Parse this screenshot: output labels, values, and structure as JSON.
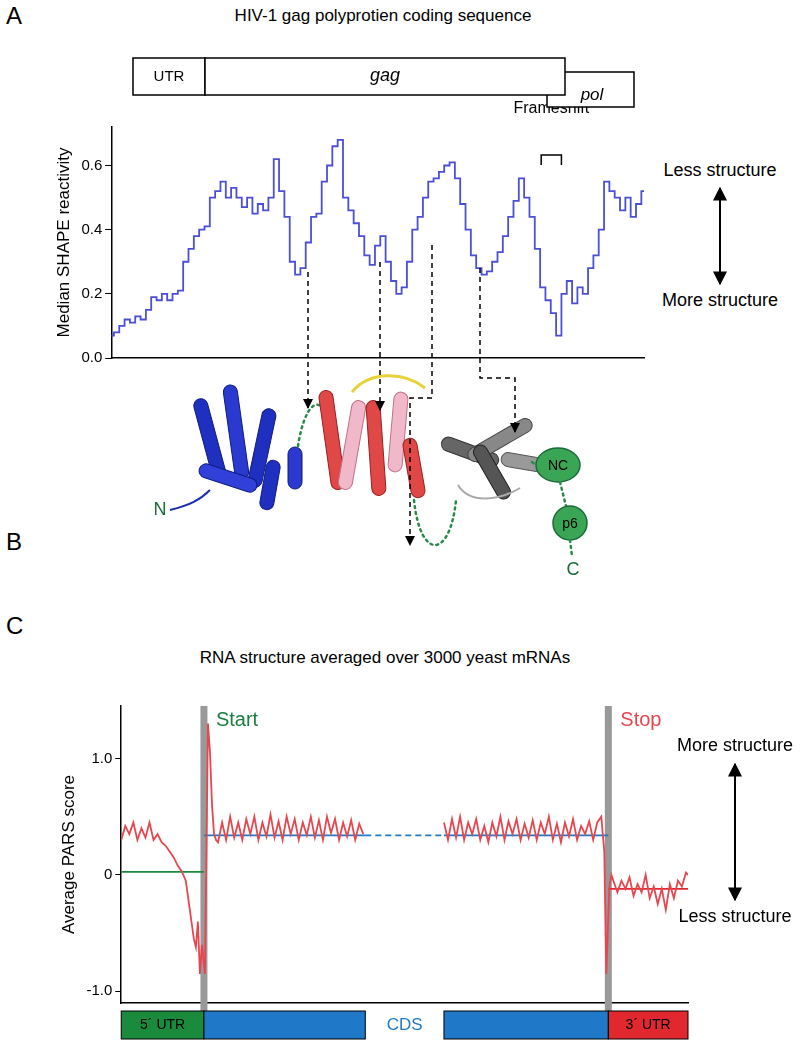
{
  "panel_labels": [
    "A",
    "B",
    "C"
  ],
  "diagram": {
    "termini": [
      "N",
      "C"
    ],
    "domains": [
      "NC",
      "p6"
    ]
  },
  "chart_data": [
    {
      "type": "line",
      "title": "HIV-1 gag polyprotien coding sequence",
      "gene_map": [
        "UTR",
        "gag",
        "pol"
      ],
      "y_label": "Median SHAPE reactivity",
      "scale_labels": {
        "top": "Less structure",
        "bottom": "More structure"
      },
      "x": [
        0,
        1,
        2,
        3,
        4,
        5,
        6,
        7,
        8,
        9,
        10,
        11,
        12,
        13,
        14,
        15,
        16,
        17,
        18,
        19,
        20,
        21,
        22,
        23,
        24,
        25,
        26,
        27,
        28,
        29,
        30,
        31,
        32,
        33,
        34,
        35,
        36,
        37,
        38,
        39,
        40,
        41,
        42,
        43,
        44,
        45,
        46,
        47,
        48,
        49,
        50,
        51,
        52,
        53,
        54,
        55,
        56,
        57,
        58,
        59,
        60,
        61,
        62,
        63,
        64,
        65,
        66,
        67,
        68,
        69,
        70,
        71,
        72,
        73,
        74,
        75,
        76,
        77,
        78,
        79,
        80,
        81,
        82,
        83,
        84,
        85,
        86,
        87,
        88,
        89,
        90,
        91,
        92,
        93,
        94,
        95,
        96,
        97,
        98,
        99,
        100
      ],
      "values": [
        0.07,
        0.08,
        0.1,
        0.12,
        0.11,
        0.13,
        0.12,
        0.15,
        0.19,
        0.18,
        0.2,
        0.18,
        0.2,
        0.21,
        0.3,
        0.34,
        0.38,
        0.4,
        0.41,
        0.5,
        0.52,
        0.55,
        0.5,
        0.53,
        0.5,
        0.47,
        0.5,
        0.45,
        0.48,
        0.46,
        0.5,
        0.62,
        0.52,
        0.44,
        0.3,
        0.26,
        0.28,
        0.36,
        0.44,
        0.45,
        0.55,
        0.6,
        0.66,
        0.68,
        0.5,
        0.46,
        0.42,
        0.38,
        0.32,
        0.29,
        0.35,
        0.38,
        0.3,
        0.24,
        0.2,
        0.22,
        0.3,
        0.4,
        0.44,
        0.5,
        0.55,
        0.56,
        0.58,
        0.6,
        0.61,
        0.56,
        0.48,
        0.4,
        0.32,
        0.28,
        0.26,
        0.27,
        0.3,
        0.33,
        0.38,
        0.44,
        0.49,
        0.56,
        0.5,
        0.44,
        0.34,
        0.22,
        0.18,
        0.14,
        0.07,
        0.2,
        0.24,
        0.17,
        0.22,
        0.2,
        0.28,
        0.32,
        0.4,
        0.55,
        0.52,
        0.5,
        0.46,
        0.5,
        0.44,
        0.48,
        0.52
      ],
      "color": "#4b4fd8",
      "line_style": "stepped",
      "xlim": [
        0,
        100
      ],
      "ylim": [
        0,
        0.72
      ],
      "yticks": [
        {
          "value": 0,
          "label": "0.0"
        },
        0.2,
        0.4,
        0.6
      ],
      "grid": false,
      "tick_labels": "y",
      "annotations": [
        {
          "text": "Frameshift",
          "x": [
            80.7,
            84.5
          ]
        }
      ]
    },
    {
      "type": "line",
      "title": "RNA structure averaged over 3000 yeast mRNAs",
      "y_label": "Average PARS score",
      "scale_labels": {
        "top": "More structure",
        "bottom": "Less structure"
      },
      "series": [
        {
          "color": "#e8464f",
          "line_style": "solid",
          "x": [
            0,
            2,
            4,
            6,
            8,
            10,
            12,
            14,
            16,
            18,
            20,
            22,
            24,
            26,
            28,
            30,
            32,
            34,
            36,
            37,
            38,
            39,
            40,
            41.5,
            43,
            44,
            45,
            46,
            47,
            48,
            50,
            52,
            54,
            56,
            58,
            60,
            62,
            64,
            66,
            68,
            70,
            72,
            74,
            76,
            78,
            80,
            82,
            84,
            86,
            88,
            90,
            92,
            94,
            96,
            98,
            100,
            102,
            104,
            106,
            108,
            110,
            112,
            114,
            116,
            118,
            120
          ],
          "values": [
            0.3,
            0.42,
            0.35,
            0.45,
            0.3,
            0.4,
            0.32,
            0.45,
            0.3,
            0.35,
            0.28,
            0.25,
            0.2,
            0.15,
            0.08,
            0.03,
            -0.05,
            -0.3,
            -0.55,
            -0.62,
            -0.4,
            -0.85,
            -0.6,
            -0.85,
            1.3,
            1.05,
            0.6,
            0.35,
            0.3,
            0.28,
            0.45,
            0.3,
            0.5,
            0.32,
            0.45,
            0.3,
            0.48,
            0.35,
            0.5,
            0.3,
            0.45,
            0.33,
            0.52,
            0.32,
            0.46,
            0.3,
            0.5,
            0.35,
            0.48,
            0.3,
            0.45,
            0.34,
            0.5,
            0.32,
            0.47,
            0.3,
            0.5,
            0.36,
            0.48,
            0.3,
            0.45,
            0.33,
            0.47,
            0.3,
            0.44,
            0.35
          ]
        },
        {
          "color": "#e8464f",
          "line_style": "solid",
          "x": [
            160,
            162,
            164,
            166,
            168,
            170,
            172,
            174,
            176,
            178,
            180,
            182,
            184,
            186,
            188,
            190,
            192,
            194,
            196,
            198,
            200,
            202,
            204,
            206,
            208,
            210,
            212,
            214,
            216,
            218,
            220,
            222,
            224,
            226,
            228,
            230,
            232,
            234,
            236,
            238,
            239.5,
            240.5,
            242,
            243,
            244,
            246,
            248,
            250,
            252,
            254,
            256,
            258,
            260,
            262,
            264,
            266,
            268,
            270,
            272,
            274,
            276,
            278,
            280,
            281
          ],
          "values": [
            0.45,
            0.3,
            0.48,
            0.32,
            0.5,
            0.3,
            0.45,
            0.35,
            0.48,
            0.3,
            0.42,
            0.28,
            0.45,
            0.33,
            0.5,
            0.3,
            0.46,
            0.35,
            0.48,
            0.3,
            0.44,
            0.32,
            0.47,
            0.3,
            0.45,
            0.35,
            0.5,
            0.3,
            0.44,
            0.28,
            0.45,
            0.33,
            0.48,
            0.3,
            0.42,
            0.35,
            0.46,
            0.3,
            0.45,
            0.5,
            0.2,
            -0.85,
            -0.1,
            0.0,
            -0.05,
            -0.15,
            -0.05,
            -0.12,
            -0.02,
            -0.18,
            -0.08,
            -0.15,
            0.0,
            -0.2,
            -0.1,
            -0.25,
            -0.12,
            -0.3,
            -0.08,
            -0.2,
            -0.05,
            -0.1,
            0.02,
            0.0
          ]
        },
        {
          "color": "#1a8a3c",
          "line_style": "solid",
          "x": [
            0,
            41
          ],
          "values": [
            0.025,
            0.025
          ]
        },
        {
          "color": "#1f78c8",
          "line_style": "solid",
          "x": [
            41,
            121
          ],
          "values": [
            0.34,
            0.34
          ]
        },
        {
          "color": "#1f78c8",
          "line_style": "dashed",
          "x": [
            121,
            160
          ],
          "values": [
            0.34,
            0.34
          ]
        },
        {
          "color": "#1f78c8",
          "line_style": "solid",
          "x": [
            160,
            241.5
          ],
          "values": [
            0.34,
            0.34
          ]
        },
        {
          "color": "#e0282e",
          "line_style": "solid",
          "x": [
            241.5,
            281
          ],
          "values": [
            -0.12,
            -0.12
          ]
        }
      ],
      "xlim": [
        0,
        281
      ],
      "ylim": [
        -1.1,
        1.45
      ],
      "yticks": [
        {
          "value": -1,
          "label": "-1.0"
        },
        0,
        {
          "value": 1,
          "label": "1.0"
        }
      ],
      "grid": false,
      "tick_labels": "y",
      "annotations": [
        {
          "text": "Start",
          "x": 41,
          "color": "#1a7f3c"
        },
        {
          "text": "Stop",
          "x": 241.5,
          "color": "#e8464f"
        }
      ],
      "regions": [
        {
          "label": "5´ UTR",
          "x": [
            0,
            41
          ],
          "color": "#1a8a3c"
        },
        {
          "x": [
            41,
            121
          ],
          "color": "#1f78c8"
        },
        {
          "x": [
            160,
            241.5
          ],
          "color": "#1f78c8"
        },
        {
          "label": "3´ UTR",
          "x": [
            241.5,
            281
          ],
          "color": "#e0282e"
        }
      ],
      "region_gap_label": "CDS"
    }
  ]
}
